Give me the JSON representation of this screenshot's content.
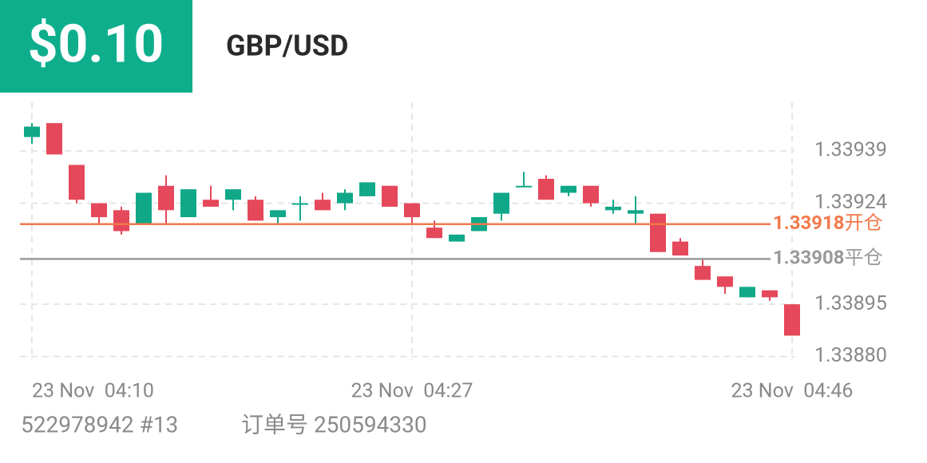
{
  "header": {
    "amount": "$0.10",
    "symbol": "GBP/USD"
  },
  "chart_data": {
    "type": "candlestick",
    "categories": [
      "23 Nov  04:10",
      null,
      null,
      null,
      null,
      null,
      null,
      null,
      null,
      null,
      null,
      null,
      null,
      null,
      null,
      null,
      null,
      "23 Nov  04:27",
      null,
      null,
      null,
      null,
      null,
      null,
      null,
      null,
      null,
      null,
      null,
      null,
      null,
      null,
      null,
      null,
      "23 Nov  04:46"
    ],
    "open": [
      1.33943,
      1.33947,
      1.33935,
      1.33924,
      1.33922,
      1.33918,
      1.33929,
      1.3392,
      1.33925,
      1.33925,
      1.33925,
      1.3392,
      1.33924,
      1.33925,
      1.33924,
      1.33926,
      1.33929,
      1.33924,
      1.33917,
      1.33913,
      1.33916,
      1.33921,
      1.33929,
      1.33931,
      1.33927,
      1.33929,
      1.33922,
      1.33921,
      1.33921,
      1.33913,
      1.33906,
      1.33903,
      1.33897,
      1.33899,
      1.33895
    ],
    "high": [
      1.33947,
      1.33947,
      1.33935,
      1.33924,
      1.33923,
      1.33927,
      1.33932,
      1.33928,
      1.33929,
      1.33928,
      1.33926,
      1.33922,
      1.33926,
      1.33927,
      1.33928,
      1.3393,
      1.33929,
      1.33924,
      1.33919,
      1.33915,
      1.3392,
      1.33927,
      1.33933,
      1.33932,
      1.33929,
      1.33929,
      1.33925,
      1.33926,
      1.33921,
      1.33914,
      1.33908,
      1.33903,
      1.339,
      1.33899,
      1.33895
    ],
    "low": [
      1.33941,
      1.33938,
      1.33924,
      1.33918,
      1.33915,
      1.33918,
      1.33918,
      1.3392,
      1.33923,
      1.33922,
      1.33919,
      1.33918,
      1.33919,
      1.33922,
      1.33922,
      1.33926,
      1.33923,
      1.33918,
      1.33914,
      1.33913,
      1.33916,
      1.33919,
      1.33929,
      1.33925,
      1.33926,
      1.33923,
      1.33921,
      1.33918,
      1.3391,
      1.33909,
      1.33902,
      1.33898,
      1.33897,
      1.33896,
      1.33886
    ],
    "close": [
      1.33946,
      1.33938,
      1.33925,
      1.3392,
      1.33916,
      1.33927,
      1.33922,
      1.33928,
      1.33923,
      1.33928,
      1.33919,
      1.33922,
      1.33924,
      1.33922,
      1.33927,
      1.3393,
      1.33923,
      1.3392,
      1.33914,
      1.33915,
      1.3392,
      1.33927,
      1.33929,
      1.33925,
      1.33929,
      1.33924,
      1.33923,
      1.33922,
      1.3391,
      1.33909,
      1.33902,
      1.339,
      1.339,
      1.33897,
      1.33886
    ],
    "up_color": "#10a888",
    "down_color": "#e5485a",
    "ylim": [
      1.33879,
      1.33953
    ],
    "yticks": [
      1.33939,
      1.33924,
      1.33895,
      {
        "value": 1.3388,
        "label": "1.33880"
      }
    ],
    "grid": true,
    "open_line": {
      "value": 1.33918,
      "label": "开仓",
      "color": "#f2794a"
    },
    "close_line": {
      "value": 1.33908,
      "label": "平仓",
      "color": "#999999"
    }
  },
  "footer": {
    "account": "522978942 #13",
    "order": "订单号 250594330"
  }
}
